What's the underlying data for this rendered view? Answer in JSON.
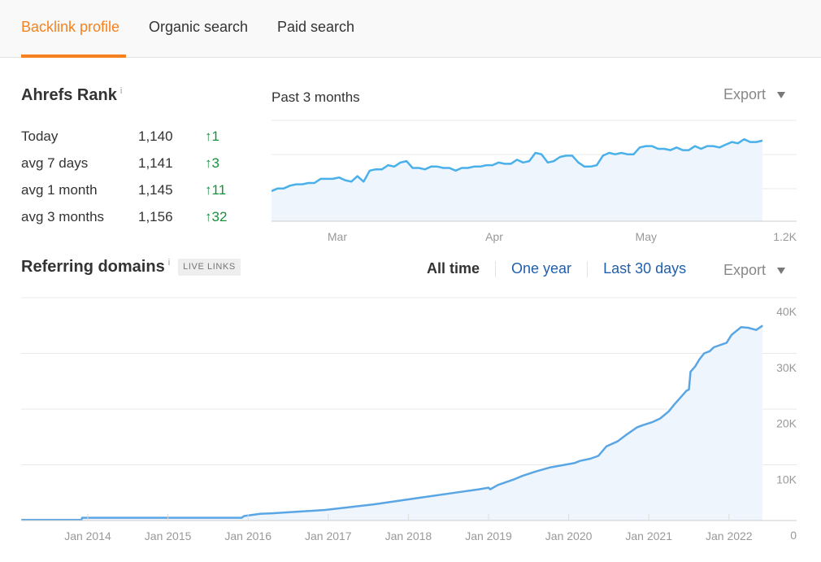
{
  "tabs": [
    {
      "label": "Backlink profile",
      "active": true
    },
    {
      "label": "Organic search",
      "active": false
    },
    {
      "label": "Paid search",
      "active": false
    }
  ],
  "ahrefs_rank": {
    "title": "Ahrefs Rank",
    "info_icon": "i",
    "period_label": "Past 3 months",
    "export_label": "Export",
    "rows": [
      {
        "label": "Today",
        "value": "1,140",
        "change": "1"
      },
      {
        "label": "avg 7 days",
        "value": "1,141",
        "change": "3"
      },
      {
        "label": "avg 1 month",
        "value": "1,145",
        "change": "11"
      },
      {
        "label": "avg 3 months",
        "value": "1,156",
        "change": "32"
      }
    ],
    "change_arrow": "↑"
  },
  "referring_domains": {
    "title": "Referring domains",
    "info_icon": "i",
    "badge": "LIVE LINKS",
    "ranges": [
      "All time",
      "One year",
      "Last 30 days"
    ],
    "active_range": "All time",
    "export_label": "Export"
  },
  "colors": {
    "accent": "#f5821f",
    "link": "#1f5fad",
    "positive": "#1a8f3c",
    "line": "#4ab0ea",
    "fill": "#eef5fd"
  },
  "chart_data": [
    {
      "type": "area",
      "axis_inverted": true,
      "ylim": [
        1100,
        1200
      ],
      "y_tick_labels": [
        "1.2K"
      ],
      "x_tick_labels": [
        "Mar",
        "Apr",
        "May"
      ],
      "grid": true,
      "values": [
        1178,
        1176,
        1176,
        1174,
        1173,
        1173,
        1172,
        1172,
        1169,
        1169,
        1169,
        1168,
        1170,
        1171,
        1167,
        1171,
        1163,
        1162,
        1162,
        1159,
        1160,
        1157,
        1156,
        1161,
        1161,
        1162,
        1160,
        1160,
        1161,
        1161,
        1163,
        1161,
        1161,
        1160,
        1160,
        1159,
        1159,
        1157,
        1158,
        1158,
        1155,
        1157,
        1156,
        1150,
        1151,
        1157,
        1156,
        1153,
        1152,
        1152,
        1157,
        1160,
        1160,
        1159,
        1152,
        1150,
        1151,
        1150,
        1151,
        1151,
        1146,
        1145,
        1145,
        1147,
        1147,
        1148,
        1146,
        1148,
        1148,
        1145,
        1147,
        1145,
        1145,
        1146,
        1144,
        1142,
        1143,
        1140,
        1142,
        1142,
        1141
      ]
    },
    {
      "type": "area",
      "ylim": [
        0,
        40000
      ],
      "y_tick_labels": [
        "40K",
        "30K",
        "20K",
        "10K",
        "0"
      ],
      "x_tick_labels": [
        "Jan 2014",
        "Jan 2015",
        "Jan 2016",
        "Jan 2017",
        "Jan 2018",
        "Jan 2019",
        "Jan 2020",
        "Jan 2021",
        "Jan 2022"
      ],
      "grid": true,
      "x": [
        2013.17,
        2013.92,
        2013.93,
        2015.92,
        2015.95,
        2016.15,
        2016.3,
        2016.96,
        2017.57,
        2018.0,
        2018.58,
        2018.88,
        2019.0,
        2019.02,
        2019.12,
        2019.32,
        2019.42,
        2019.59,
        2019.76,
        2020.07,
        2020.14,
        2020.27,
        2020.37,
        2020.47,
        2020.61,
        2020.71,
        2020.85,
        2020.92,
        2021.05,
        2021.14,
        2021.25,
        2021.31,
        2021.47,
        2021.5,
        2021.52,
        2021.58,
        2021.63,
        2021.69,
        2021.76,
        2021.81,
        2021.97,
        2022.03,
        2022.15,
        2022.24,
        2022.34,
        2022.42
      ],
      "y": [
        100,
        100,
        500,
        500,
        800,
        1200,
        1300,
        1900,
        2900,
        3800,
        5000,
        5600,
        5900,
        5600,
        6400,
        7400,
        8000,
        8800,
        9500,
        10300,
        10700,
        11100,
        11600,
        13300,
        14200,
        15300,
        16700,
        17100,
        17700,
        18300,
        19600,
        20700,
        23300,
        23500,
        26700,
        27700,
        28900,
        30000,
        30400,
        31100,
        31900,
        33300,
        34700,
        34600,
        34200,
        35000
      ]
    }
  ]
}
